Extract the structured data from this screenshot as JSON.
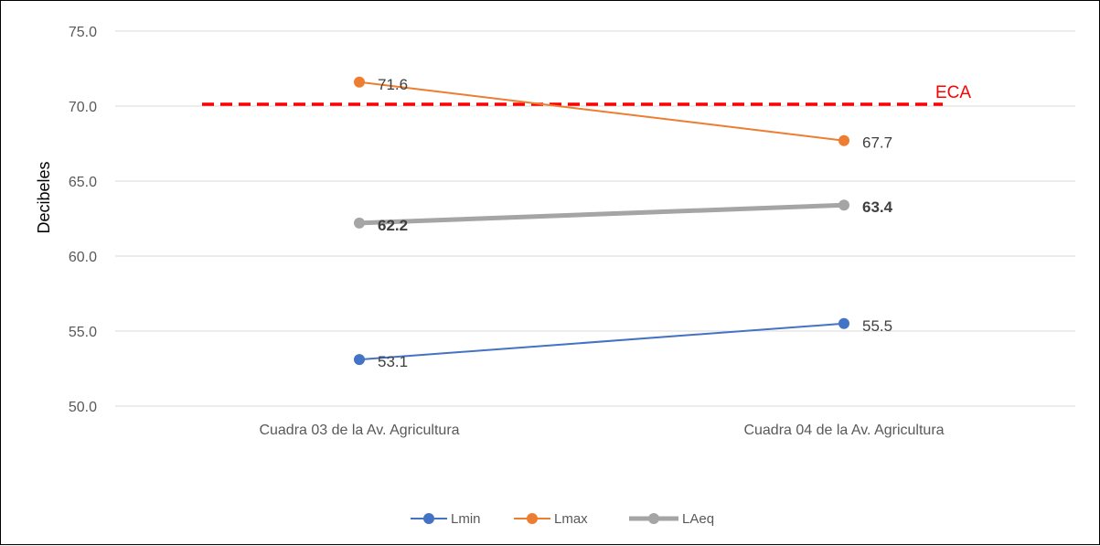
{
  "chart_data": {
    "type": "line",
    "categories": [
      "Cuadra 03 de la Av. Agricultura",
      "Cuadra 04 de la Av. Agricultura"
    ],
    "series": [
      {
        "name": "Lmin",
        "values": [
          53.1,
          55.5
        ],
        "color": "#4472C4",
        "labels": [
          "53.1",
          "55.5"
        ],
        "bold_labels": false,
        "thick": false
      },
      {
        "name": "Lmax",
        "values": [
          71.6,
          67.7
        ],
        "color": "#ED7D31",
        "labels": [
          "71.6",
          "67.7"
        ],
        "bold_labels": false,
        "thick": false
      },
      {
        "name": "LAeq",
        "values": [
          62.2,
          63.4
        ],
        "color": "#A5A5A5",
        "labels": [
          "62.2",
          "63.4"
        ],
        "bold_labels": true,
        "thick": true
      }
    ],
    "reference_line": {
      "label": "ECA",
      "value": 70.0,
      "color": "#FF0000",
      "style": "dashed"
    },
    "ylabel": "Decibeles",
    "xlabel": "",
    "ylim": [
      50.0,
      75.0
    ],
    "yticks": [
      "50.0",
      "55.0",
      "60.0",
      "65.0",
      "70.0",
      "75.0"
    ],
    "grid": true,
    "legend_position": "bottom"
  }
}
